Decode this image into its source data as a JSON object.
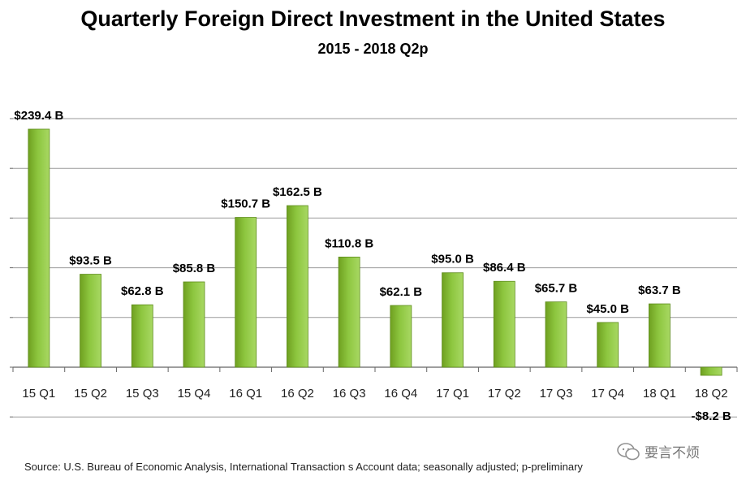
{
  "chart_data": {
    "type": "bar",
    "title": "Quarterly Foreign Direct Investment in the United States",
    "subtitle": "2015 - 2018 Q2p",
    "categories": [
      "15 Q1",
      "15 Q2",
      "15 Q3",
      "15 Q4",
      "16 Q1",
      "16 Q2",
      "16 Q3",
      "16 Q4",
      "17 Q1",
      "17 Q2",
      "17 Q3",
      "17 Q4",
      "18 Q1",
      "18 Q2"
    ],
    "values": [
      239.4,
      93.5,
      62.8,
      85.8,
      150.7,
      162.5,
      110.8,
      62.1,
      95.0,
      86.4,
      65.7,
      45.0,
      63.7,
      -8.2
    ],
    "data_labels": [
      "$239.4 B",
      "$93.5 B",
      "$62.8 B",
      "$85.8 B",
      "$150.7 B",
      "$162.5 B",
      "$110.8 B",
      "$62.1 B",
      "$95.0 B",
      "$86.4 B",
      "$65.7 B",
      "$45.0 B",
      "$63.7 B",
      "-$8.2 B"
    ],
    "ylim": [
      -50,
      250
    ],
    "ytick_step": 50,
    "xlabel": "",
    "ylabel": "",
    "grid": true,
    "legend": "none",
    "bar_color": "#8dc63f"
  },
  "source": "Source:  U.S. Bureau of Economic Analysis, International Transaction s Account data; seasonally adjusted; p-preliminary",
  "watermark": "要言不烦"
}
